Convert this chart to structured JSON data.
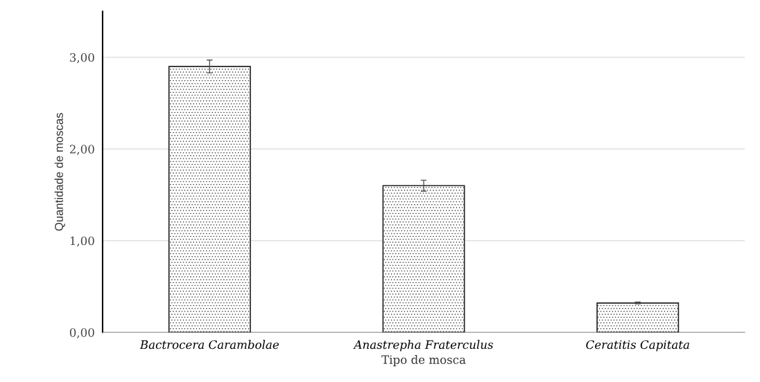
{
  "chart_data": {
    "type": "bar",
    "xlabel": "Tipo de mosca",
    "ylabel": "Quantidade de moscas",
    "categories": [
      "Bactrocera Carambolae",
      "Anastrepha Fraterculus",
      "Ceratitis Capitata"
    ],
    "values": [
      2.9,
      1.6,
      0.32
    ],
    "errors": [
      0.07,
      0.06,
      0.01
    ],
    "color": "#222222",
    "ylim": [
      0,
      3.5
    ],
    "yticks": [
      {
        "value": 0,
        "label": "0,00"
      },
      {
        "value": 1,
        "label": "1,00"
      },
      {
        "value": 2,
        "label": "2,00"
      },
      {
        "value": 3,
        "label": "3,00"
      }
    ],
    "grid": "y"
  }
}
